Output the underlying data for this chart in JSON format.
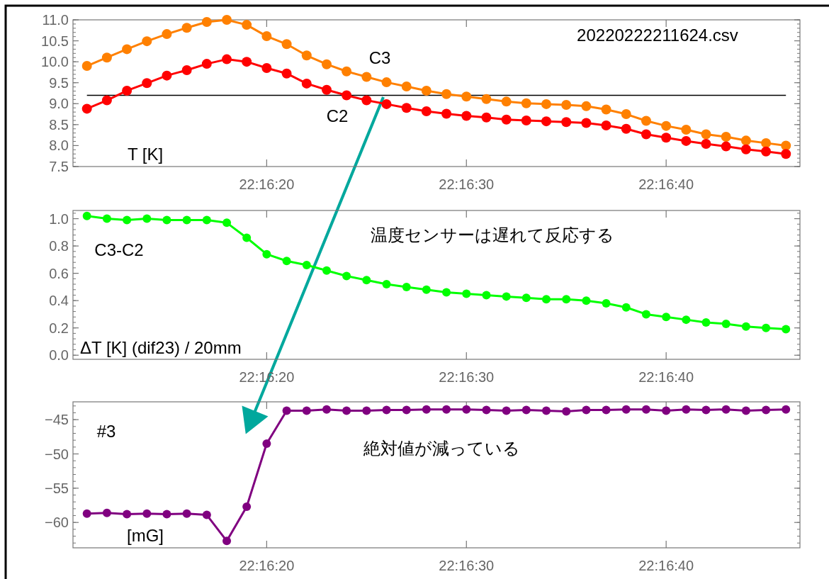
{
  "chart_data": [
    {
      "type": "line",
      "ylabel": "T [K]",
      "annotations": [
        "20220222211624.csv"
      ],
      "x": [
        22.269722,
        22.27,
        22.270278,
        22.270556,
        22.270833,
        22.271111,
        22.271389,
        22.271667,
        22.271944,
        22.272222,
        22.2725,
        22.272778,
        22.273056,
        22.273333,
        22.273611,
        22.273889,
        22.274167,
        22.274444,
        22.274722,
        22.275,
        22.275278,
        22.275556,
        22.275833,
        22.276111,
        22.276389,
        22.276667,
        22.276944,
        22.277222,
        22.2775,
        22.277778,
        22.278056,
        22.278333,
        22.278611,
        22.278889,
        22.279167,
        22.279444
      ],
      "series": [
        {
          "name": "C3",
          "color": "#ff8000",
          "values": [
            9.9,
            10.1,
            10.3,
            10.49,
            10.66,
            10.81,
            10.95,
            11.0,
            10.88,
            10.61,
            10.42,
            10.15,
            9.94,
            9.77,
            9.64,
            9.51,
            9.41,
            9.31,
            9.23,
            9.17,
            9.11,
            9.05,
            9.01,
            8.99,
            8.97,
            8.94,
            8.86,
            8.75,
            8.59,
            8.47,
            8.38,
            8.27,
            8.21,
            8.12,
            8.06,
            8.0
          ]
        },
        {
          "name": "C2",
          "color": "#ff0000",
          "values": [
            8.88,
            9.08,
            9.31,
            9.49,
            9.67,
            9.8,
            9.95,
            10.06,
            10.0,
            9.85,
            9.72,
            9.48,
            9.33,
            9.2,
            9.08,
            8.99,
            8.9,
            8.82,
            8.76,
            8.71,
            8.67,
            8.62,
            8.6,
            8.58,
            8.56,
            8.54,
            8.48,
            8.4,
            8.27,
            8.19,
            8.11,
            8.04,
            7.98,
            7.91,
            7.86,
            7.8
          ]
        }
      ],
      "ref_lines": [
        {
          "axis": "y",
          "value": 9.2,
          "color": "#000000"
        }
      ],
      "xlim": [
        22.269528,
        22.279639
      ],
      "xticks": [
        {
          "value": 22.272222,
          "label": "22:16:20"
        },
        {
          "value": 22.275,
          "label": "22:16:30"
        },
        {
          "value": 22.277778,
          "label": "22:16:40"
        }
      ],
      "ylim": [
        7.5,
        11.0
      ],
      "yticks": [
        {
          "value": 7.5,
          "label": "7.5"
        },
        {
          "value": 8,
          "label": "8.0"
        },
        {
          "value": 8.5,
          "label": "8.5"
        },
        {
          "value": 9,
          "label": "9.0"
        },
        {
          "value": 9.5,
          "label": "9.5"
        },
        {
          "value": 10,
          "label": "10.0"
        },
        {
          "value": 10.5,
          "label": "10.5"
        },
        {
          "value": 11,
          "label": "11.0"
        }
      ],
      "marker": "circle",
      "line_style": "solid",
      "grid": false
    },
    {
      "type": "line",
      "ylabel": "ΔT [K] (dif23) / 20mm",
      "annotations": [
        "温度センサーは遅れて反応する"
      ],
      "x": [
        22.269722,
        22.27,
        22.270278,
        22.270556,
        22.270833,
        22.271111,
        22.271389,
        22.271667,
        22.271944,
        22.272222,
        22.2725,
        22.272778,
        22.273056,
        22.273333,
        22.273611,
        22.273889,
        22.274167,
        22.274444,
        22.274722,
        22.275,
        22.275278,
        22.275556,
        22.275833,
        22.276111,
        22.276389,
        22.276667,
        22.276944,
        22.277222,
        22.2775,
        22.277778,
        22.278056,
        22.278333,
        22.278611,
        22.278889,
        22.279167,
        22.279444
      ],
      "series": [
        {
          "name": "C3-C2",
          "color": "#00ff00",
          "values": [
            1.02,
            1.0,
            0.99,
            1.0,
            0.99,
            0.99,
            0.99,
            0.97,
            0.86,
            0.74,
            0.69,
            0.66,
            0.62,
            0.58,
            0.55,
            0.52,
            0.5,
            0.48,
            0.46,
            0.45,
            0.44,
            0.43,
            0.42,
            0.41,
            0.41,
            0.4,
            0.38,
            0.35,
            0.3,
            0.28,
            0.26,
            0.24,
            0.23,
            0.21,
            0.2,
            0.19
          ]
        }
      ],
      "xlim": [
        22.269528,
        22.279639
      ],
      "xticks": [
        {
          "value": 22.272222,
          "label": "22:16:20"
        },
        {
          "value": 22.275,
          "label": "22:16:30"
        },
        {
          "value": 22.277778,
          "label": "22:16:40"
        }
      ],
      "ylim": [
        -0.03,
        1.06
      ],
      "yticks": [
        {
          "value": 0,
          "label": "0.0"
        },
        {
          "value": 0.2,
          "label": "0.2"
        },
        {
          "value": 0.4,
          "label": "0.4"
        },
        {
          "value": 0.6,
          "label": "0.6"
        },
        {
          "value": 0.8,
          "label": "0.8"
        },
        {
          "value": 1,
          "label": "1.0"
        }
      ],
      "marker": "circle",
      "line_style": "solid",
      "grid": false
    },
    {
      "type": "line",
      "ylabel": "[mG]",
      "annotations": [
        "絶対値が減っている"
      ],
      "x": [
        22.269722,
        22.27,
        22.270278,
        22.270556,
        22.270833,
        22.271111,
        22.271389,
        22.271667,
        22.271944,
        22.272222,
        22.2725,
        22.272778,
        22.273056,
        22.273333,
        22.273611,
        22.273889,
        22.274167,
        22.274444,
        22.274722,
        22.275,
        22.275278,
        22.275556,
        22.275833,
        22.276111,
        22.276389,
        22.276667,
        22.276944,
        22.277222,
        22.2775,
        22.277778,
        22.278056,
        22.278333,
        22.278611,
        22.278889,
        22.279167,
        22.279444
      ],
      "series": [
        {
          "name": "#3",
          "color": "#800080",
          "values": [
            -58.7,
            -58.6,
            -58.8,
            -58.7,
            -58.8,
            -58.7,
            -58.9,
            -62.7,
            -57.7,
            -48.5,
            -43.7,
            -43.7,
            -43.5,
            -43.7,
            -43.7,
            -43.6,
            -43.6,
            -43.5,
            -43.5,
            -43.5,
            -43.6,
            -43.7,
            -43.6,
            -43.7,
            -43.8,
            -43.6,
            -43.6,
            -43.5,
            -43.5,
            -43.7,
            -43.5,
            -43.6,
            -43.5,
            -43.7,
            -43.6,
            -43.5
          ]
        }
      ],
      "xlim": [
        22.269528,
        22.279639
      ],
      "xticks": [
        {
          "value": 22.272222,
          "label": "22:16:20"
        },
        {
          "value": 22.275,
          "label": "22:16:30"
        },
        {
          "value": 22.277778,
          "label": "22:16:40"
        }
      ],
      "ylim": [
        -63.7,
        -42.4
      ],
      "yticks": [
        {
          "value": -60,
          "label": "−60"
        },
        {
          "value": -55,
          "label": "−55"
        },
        {
          "value": -50,
          "label": "−50"
        },
        {
          "value": -45,
          "label": "−45"
        }
      ],
      "marker": "circle",
      "line_style": "solid",
      "grid": false
    }
  ]
}
